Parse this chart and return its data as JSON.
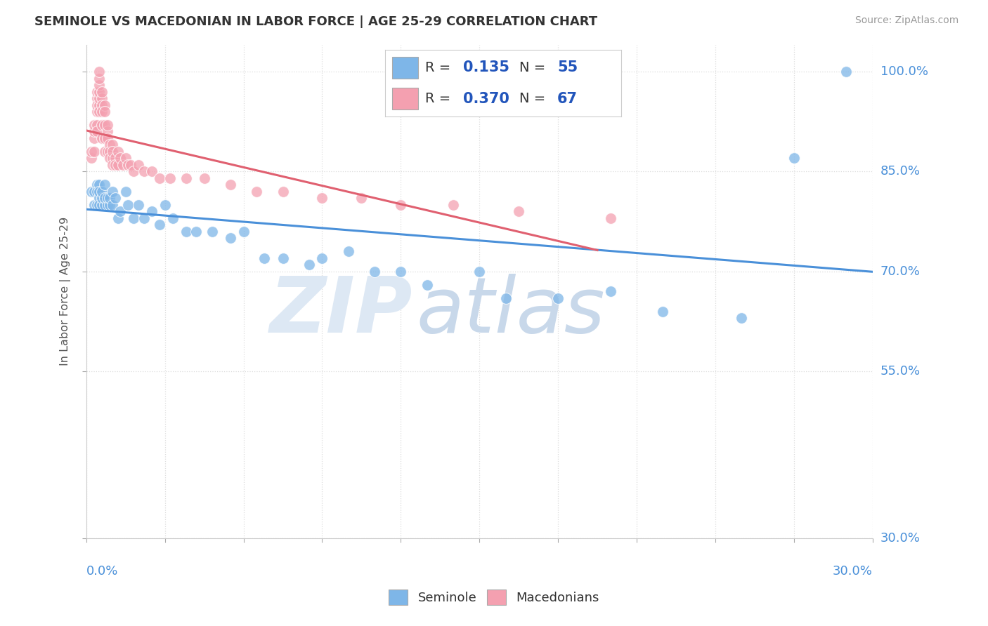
{
  "title": "SEMINOLE VS MACEDONIAN IN LABOR FORCE | AGE 25-29 CORRELATION CHART",
  "source": "Source: ZipAtlas.com",
  "ylabel": "In Labor Force | Age 25-29",
  "ylabel_ticks": [
    "30.0%",
    "55.0%",
    "70.0%",
    "85.0%",
    "100.0%"
  ],
  "ylabel_values": [
    0.3,
    0.55,
    0.7,
    0.85,
    1.0
  ],
  "xmin": 0.0,
  "xmax": 0.3,
  "ymin": 0.3,
  "ymax": 1.04,
  "seminole_R": 0.135,
  "seminole_N": 55,
  "macedonian_R": 0.37,
  "macedonian_N": 67,
  "seminole_color": "#7eb6e8",
  "macedonian_color": "#f4a0b0",
  "seminole_line_color": "#4a90d9",
  "macedonian_line_color": "#e06070",
  "legend_label_seminole": "Seminole",
  "legend_label_macedonian": "Macedonians",
  "watermark_zip": "ZIP",
  "watermark_atlas": "atlas",
  "background_color": "#ffffff",
  "seminole_x": [
    0.002,
    0.003,
    0.003,
    0.004,
    0.004,
    0.004,
    0.005,
    0.005,
    0.005,
    0.005,
    0.006,
    0.006,
    0.006,
    0.007,
    0.007,
    0.007,
    0.008,
    0.008,
    0.009,
    0.009,
    0.01,
    0.01,
    0.011,
    0.012,
    0.013,
    0.015,
    0.016,
    0.018,
    0.02,
    0.022,
    0.025,
    0.028,
    0.03,
    0.033,
    0.038,
    0.042,
    0.048,
    0.055,
    0.06,
    0.068,
    0.075,
    0.085,
    0.09,
    0.1,
    0.11,
    0.12,
    0.13,
    0.15,
    0.16,
    0.18,
    0.2,
    0.22,
    0.25,
    0.27,
    0.29
  ],
  "seminole_y": [
    0.82,
    0.8,
    0.82,
    0.83,
    0.82,
    0.8,
    0.81,
    0.83,
    0.82,
    0.8,
    0.8,
    0.81,
    0.82,
    0.8,
    0.81,
    0.83,
    0.8,
    0.81,
    0.8,
    0.81,
    0.82,
    0.8,
    0.81,
    0.78,
    0.79,
    0.82,
    0.8,
    0.78,
    0.8,
    0.78,
    0.79,
    0.77,
    0.8,
    0.78,
    0.76,
    0.76,
    0.76,
    0.75,
    0.76,
    0.72,
    0.72,
    0.71,
    0.72,
    0.73,
    0.7,
    0.7,
    0.68,
    0.7,
    0.66,
    0.66,
    0.67,
    0.64,
    0.63,
    0.87,
    1.0
  ],
  "macedonian_x": [
    0.002,
    0.002,
    0.003,
    0.003,
    0.003,
    0.003,
    0.004,
    0.004,
    0.004,
    0.004,
    0.004,
    0.004,
    0.005,
    0.005,
    0.005,
    0.005,
    0.005,
    0.005,
    0.005,
    0.006,
    0.006,
    0.006,
    0.006,
    0.006,
    0.006,
    0.007,
    0.007,
    0.007,
    0.007,
    0.007,
    0.008,
    0.008,
    0.008,
    0.008,
    0.009,
    0.009,
    0.009,
    0.01,
    0.01,
    0.01,
    0.01,
    0.011,
    0.011,
    0.012,
    0.012,
    0.013,
    0.014,
    0.015,
    0.016,
    0.017,
    0.018,
    0.02,
    0.022,
    0.025,
    0.028,
    0.032,
    0.038,
    0.045,
    0.055,
    0.065,
    0.075,
    0.09,
    0.105,
    0.12,
    0.14,
    0.165,
    0.2
  ],
  "macedonian_y": [
    0.87,
    0.88,
    0.9,
    0.91,
    0.92,
    0.88,
    0.94,
    0.96,
    0.97,
    0.95,
    0.92,
    0.91,
    0.95,
    0.96,
    0.97,
    0.98,
    0.99,
    1.0,
    0.94,
    0.96,
    0.97,
    0.95,
    0.94,
    0.92,
    0.9,
    0.95,
    0.94,
    0.92,
    0.9,
    0.88,
    0.91,
    0.9,
    0.92,
    0.88,
    0.89,
    0.88,
    0.87,
    0.89,
    0.87,
    0.88,
    0.86,
    0.87,
    0.86,
    0.88,
    0.86,
    0.87,
    0.86,
    0.87,
    0.86,
    0.86,
    0.85,
    0.86,
    0.85,
    0.85,
    0.84,
    0.84,
    0.84,
    0.84,
    0.83,
    0.82,
    0.82,
    0.81,
    0.81,
    0.8,
    0.8,
    0.79,
    0.78
  ]
}
